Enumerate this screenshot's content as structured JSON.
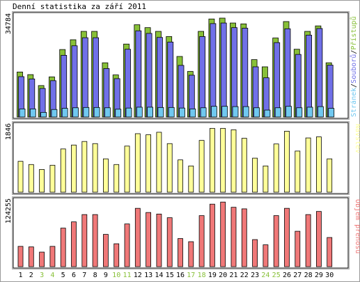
{
  "title": "Denní statistika za září 2011",
  "chart_data": [
    {
      "type": "bar",
      "ytick_label": "34784",
      "ymax_value": 34784,
      "legend": [
        "Přístupů",
        "Souborů",
        "Stránek"
      ],
      "colors": {
        "Přístupů": "#88c038",
        "Souborů": "#7070e8",
        "Stránek": "#70c8f0"
      },
      "categories": [
        "1",
        "2",
        "3",
        "4",
        "5",
        "6",
        "7",
        "8",
        "9",
        "10",
        "11",
        "12",
        "13",
        "14",
        "15",
        "16",
        "17",
        "18",
        "19",
        "20",
        "21",
        "22",
        "23",
        "24",
        "25",
        "26",
        "27",
        "28",
        "29",
        "30"
      ],
      "series": [
        {
          "name": "Přístupů",
          "values": [
            15600,
            14700,
            10900,
            13900,
            23400,
            26800,
            29700,
            29700,
            18800,
            14600,
            25300,
            32000,
            31000,
            29700,
            27900,
            21000,
            15800,
            29700,
            34000,
            34300,
            32600,
            32300,
            19900,
            17400,
            27400,
            33100,
            23500,
            29700,
            31600,
            18800
          ]
        },
        {
          "name": "Souborů",
          "values": [
            14000,
            13200,
            9900,
            12600,
            21400,
            24700,
            27500,
            27500,
            16800,
            13300,
            23500,
            29900,
            29000,
            27600,
            26000,
            17900,
            14500,
            27900,
            32400,
            32600,
            31000,
            30800,
            17400,
            13600,
            25800,
            30600,
            21700,
            28400,
            30700,
            18000
          ]
        },
        {
          "name": "Stránek",
          "values": [
            2800,
            2800,
            1600,
            2600,
            3000,
            3200,
            3300,
            3300,
            3200,
            2700,
            3100,
            3400,
            3400,
            3300,
            3300,
            3100,
            2800,
            3200,
            3700,
            3700,
            3600,
            3600,
            3200,
            2400,
            3200,
            3700,
            3200,
            3400,
            3600,
            3000
          ]
        }
      ]
    },
    {
      "type": "bar",
      "ytick_label": "1846",
      "ymax_value": 1846,
      "legend": [
        "Návštěv"
      ],
      "colors": {
        "Návštěv": "#ffff99"
      },
      "categories": [
        "1",
        "2",
        "3",
        "4",
        "5",
        "6",
        "7",
        "8",
        "9",
        "10",
        "11",
        "12",
        "13",
        "14",
        "15",
        "16",
        "17",
        "18",
        "19",
        "20",
        "21",
        "22",
        "23",
        "24",
        "25",
        "26",
        "27",
        "28",
        "29",
        "30"
      ],
      "series": [
        {
          "name": "Návštěv",
          "values": [
            870,
            780,
            640,
            760,
            1220,
            1330,
            1430,
            1370,
            940,
            780,
            1300,
            1650,
            1620,
            1690,
            1370,
            910,
            740,
            1460,
            1800,
            1800,
            1760,
            1520,
            960,
            740,
            1360,
            1720,
            1160,
            1530,
            1560,
            940
          ]
        }
      ]
    },
    {
      "type": "bar",
      "ytick_label": "124255",
      "ymax_value": 124255,
      "legend": [
        "Objem přenosu"
      ],
      "colors": {
        "Objem přenosu": "#f07878"
      },
      "categories": [
        "1",
        "2",
        "3",
        "4",
        "5",
        "6",
        "7",
        "8",
        "9",
        "10",
        "11",
        "12",
        "13",
        "14",
        "15",
        "16",
        "17",
        "18",
        "19",
        "20",
        "21",
        "22",
        "23",
        "24",
        "25",
        "26",
        "27",
        "28",
        "29",
        "30"
      ],
      "series": [
        {
          "name": "Objem přenosu",
          "values": [
            39000,
            38000,
            28000,
            39000,
            74000,
            86000,
            100000,
            100000,
            62000,
            44000,
            82000,
            112000,
            104000,
            101000,
            94000,
            54000,
            48000,
            98000,
            120000,
            124000,
            114000,
            111000,
            52000,
            42000,
            98000,
            112000,
            68000,
            100000,
            106000,
            56000
          ]
        }
      ]
    }
  ],
  "weekend_days": [
    "3",
    "4",
    "10",
    "11",
    "17",
    "18",
    "24",
    "25"
  ]
}
